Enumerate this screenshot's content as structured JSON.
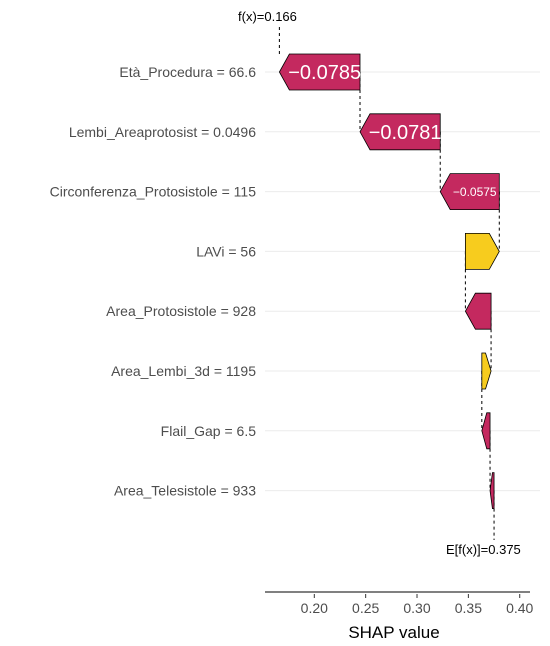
{
  "chart_data": {
    "type": "waterfall",
    "title": "",
    "xlabel": "SHAP value",
    "ylabel": "",
    "xlim": [
      0.152,
      0.41
    ],
    "x_ticks": [
      0.2,
      0.25,
      0.3,
      0.35,
      0.4
    ],
    "x_tick_labels": [
      "0.20",
      "0.25",
      "0.30",
      "0.35",
      "0.40"
    ],
    "grid": true,
    "f_x": 0.166,
    "f_x_label": "f(x)=0.166",
    "e_fx": 0.375,
    "e_fx_label": "E[f(x)]=0.375",
    "colors": {
      "negative": "#c4295f",
      "positive": "#f7cc1e"
    },
    "features": [
      {
        "label": "Età_Procedura = 66.6",
        "value": -0.0785,
        "value_label": "−0.0785",
        "start": 0.2445,
        "end": 0.166
      },
      {
        "label": "Lembi_Areaprotosist = 0.0496",
        "value": -0.0781,
        "value_label": "−0.0781",
        "start": 0.3226,
        "end": 0.2445
      },
      {
        "label": "Circonferenza_Protosistole = 115",
        "value": -0.0575,
        "value_label": "−0.0575",
        "start": 0.3801,
        "end": 0.3226
      },
      {
        "label": "LAVi = 56",
        "value": 0.033,
        "value_label": "",
        "start": 0.3471,
        "end": 0.3801
      },
      {
        "label": "Area_Protosistole = 928",
        "value": -0.025,
        "value_label": "",
        "start": 0.3721,
        "end": 0.3471
      },
      {
        "label": "Area_Lembi_3d = 1195",
        "value": 0.009,
        "value_label": "",
        "start": 0.3631,
        "end": 0.3721
      },
      {
        "label": "Flail_Gap = 6.5",
        "value": -0.008,
        "value_label": "",
        "start": 0.3711,
        "end": 0.3631
      },
      {
        "label": "Area_Telesistole = 933",
        "value": -0.0039,
        "value_label": "",
        "start": 0.375,
        "end": 0.3711
      }
    ]
  }
}
